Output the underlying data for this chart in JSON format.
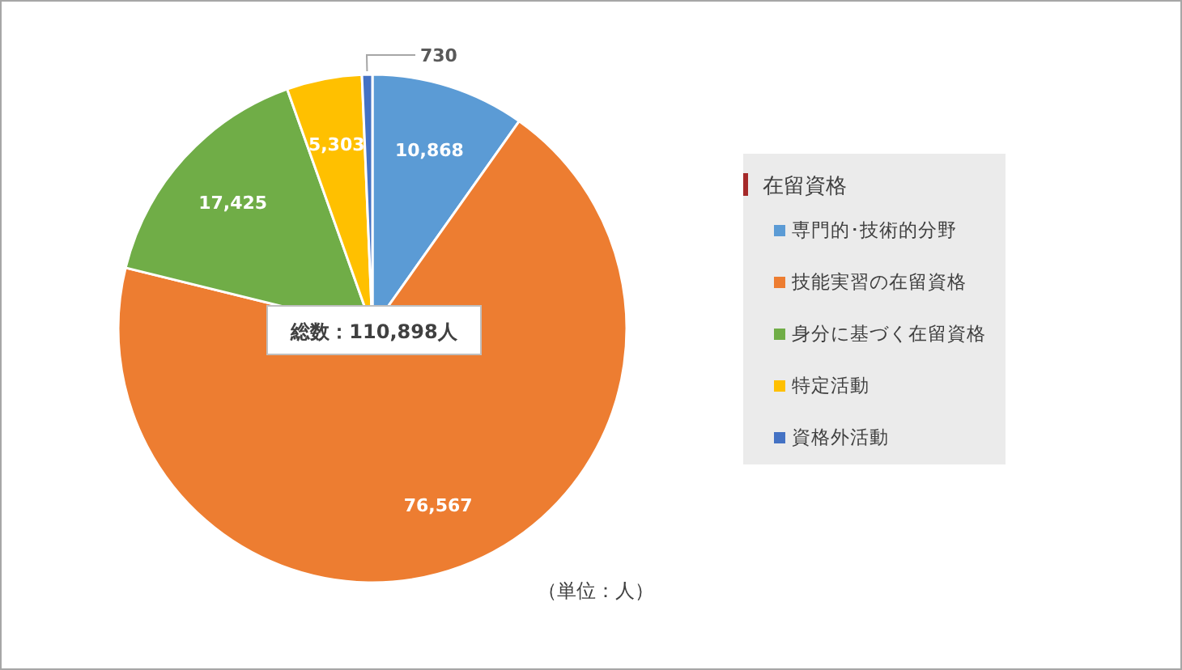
{
  "chart_data": {
    "type": "pie",
    "legend_title": "在留資格",
    "legend": "right",
    "value_labels": [
      "10,868",
      "76,567",
      "17,425",
      "5,303",
      "730"
    ],
    "categories": [
      "専門的･技術的分野",
      "技能実習の在留資格",
      "身分に基づく在留資格",
      "特定活動",
      "資格外活動"
    ],
    "values": [
      10868,
      76567,
      17425,
      5303,
      730
    ],
    "colors": [
      "#5b9bd5",
      "#ed7d31",
      "#70ad47",
      "#ffc000",
      "#4472c4"
    ],
    "annotations": [
      "総数：110,898人",
      "（単位：人）"
    ]
  }
}
